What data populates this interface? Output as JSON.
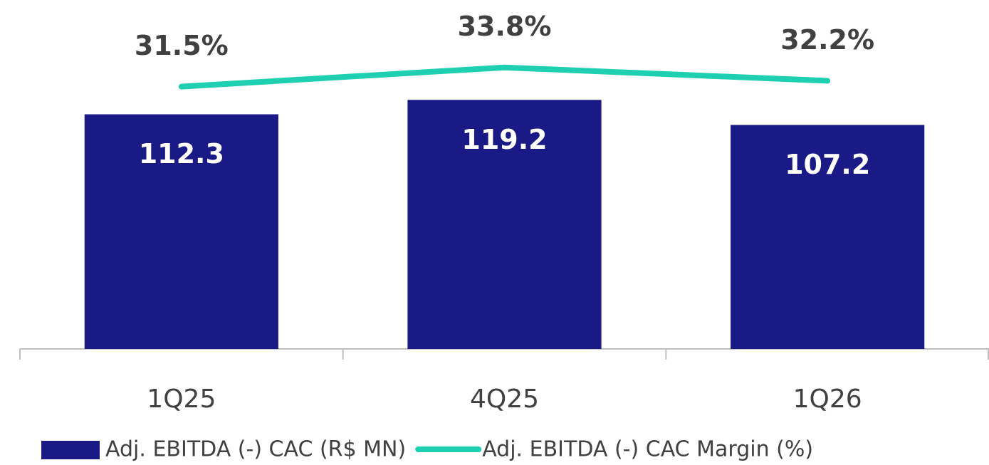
{
  "chart_data": {
    "type": "bar",
    "categories": [
      "1Q25",
      "4Q25",
      "1Q26"
    ],
    "ylim": [
      0,
      167
    ],
    "y2lim": [
      0,
      41.9
    ],
    "series": [
      {
        "name": "Adj. EBITDA (-) CAC (R$ MN)",
        "type": "bar",
        "color": "#1a1a86",
        "values": [
          112.3,
          119.2,
          107.2
        ]
      },
      {
        "name": "Adj. EBITDA (-) CAC Margin (%)",
        "type": "line",
        "axis": "y2",
        "color": "#1fcfb1",
        "values": [
          31.5,
          33.8,
          32.2
        ],
        "value_labels": [
          "31.5%",
          "33.8%",
          "32.2%"
        ]
      }
    ]
  }
}
